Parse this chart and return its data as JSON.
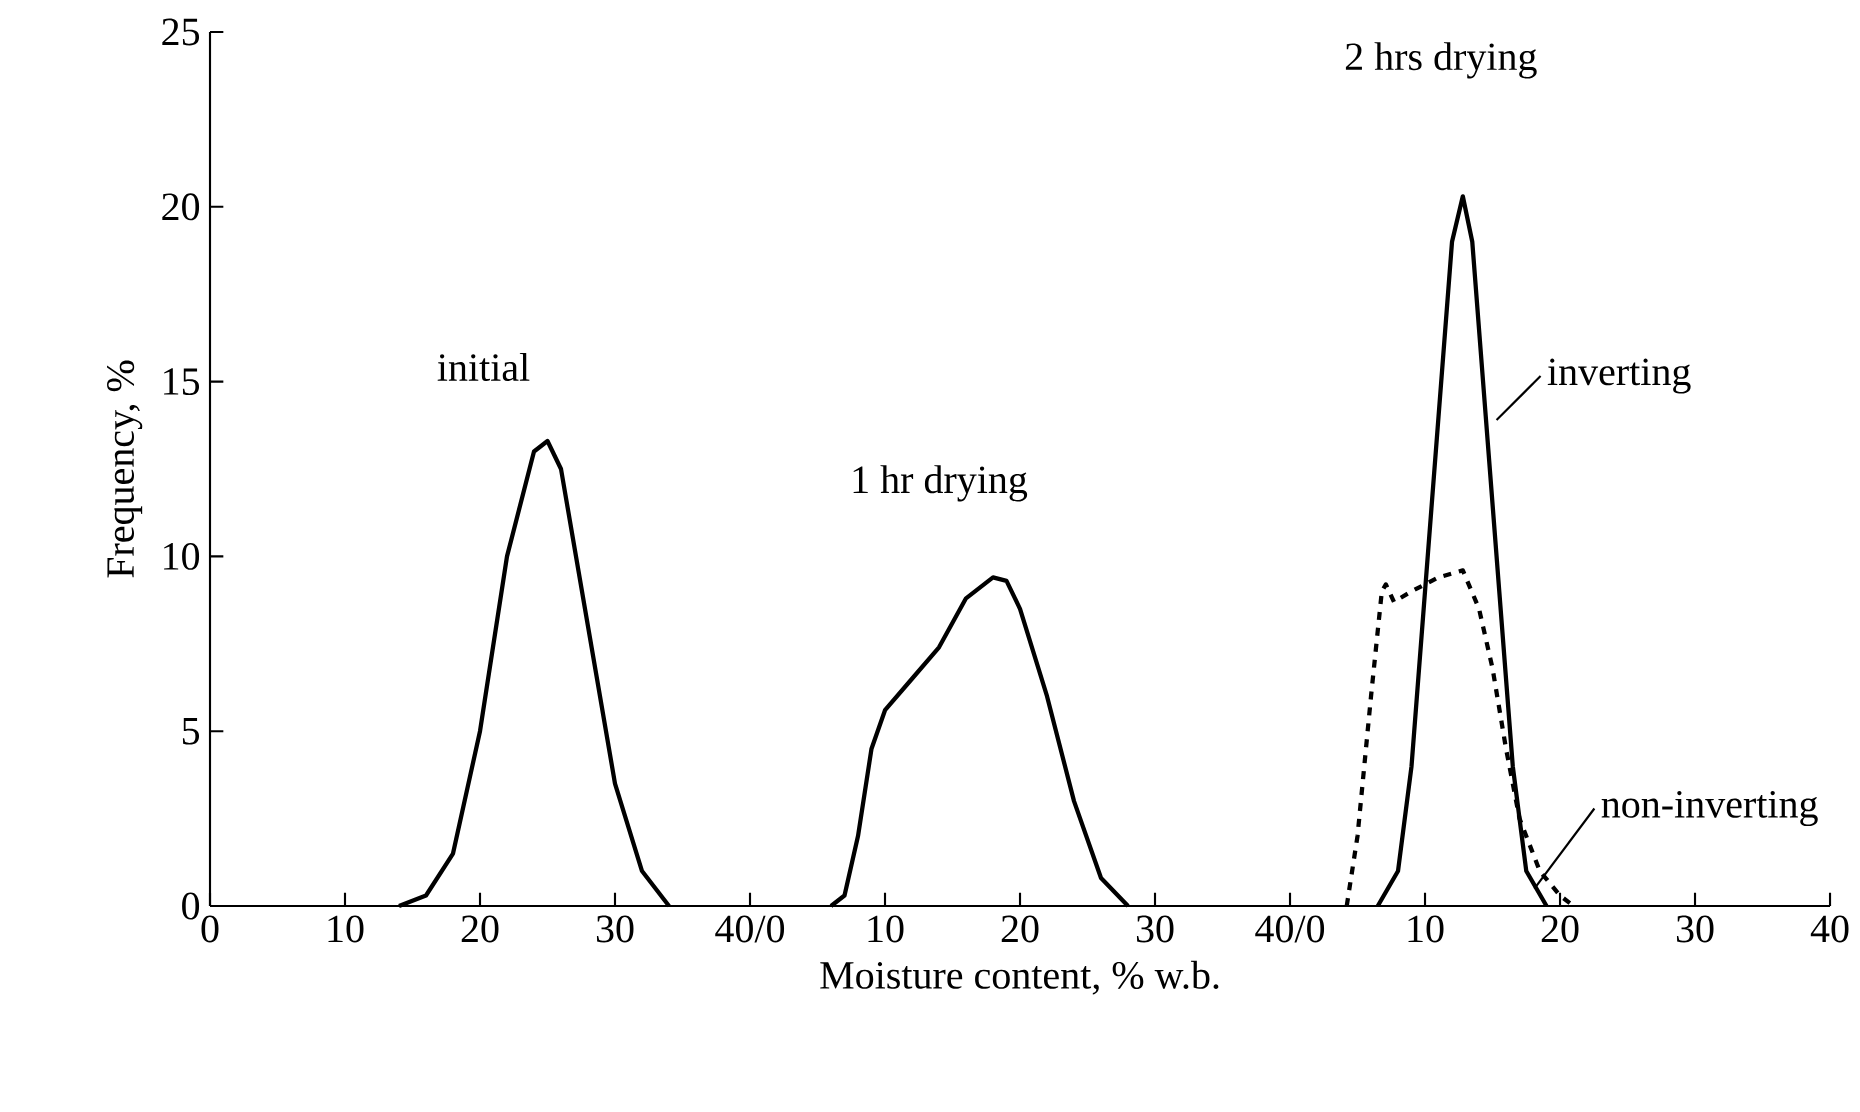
{
  "chart_data": [
    {
      "type": "line",
      "ylabel": "Frequency, %",
      "xlim": [
        0,
        40
      ],
      "ylim": [
        0,
        25
      ],
      "xticks": [
        0,
        10,
        20,
        30,
        {
          "value": 40,
          "label": "40/0"
        }
      ],
      "yticks": [
        0,
        5,
        10,
        15,
        20,
        25
      ],
      "series": [
        {
          "color": "#000000",
          "line_style": "solid",
          "x": [
            14,
            16,
            18,
            20,
            22,
            24,
            25,
            26,
            28,
            30,
            32,
            34
          ],
          "values": [
            0,
            0.3,
            1.5,
            5,
            10,
            13,
            13.3,
            12.5,
            8,
            3.5,
            1,
            0
          ]
        }
      ],
      "annotations": [
        {
          "text": "initial",
          "x": 25,
          "y": 13.3
        }
      ]
    },
    {
      "type": "line",
      "xlabel": "Moisture content, % w.b.",
      "xlim": [
        0,
        40
      ],
      "ylim": [
        0,
        25
      ],
      "tick_labels": "x",
      "xticks": [
        10,
        20,
        30,
        {
          "value": 40,
          "label": "40/0"
        }
      ],
      "yticks": [
        0,
        5,
        10,
        15,
        20,
        25
      ],
      "series": [
        {
          "color": "#000000",
          "line_style": "solid",
          "x": [
            6,
            7,
            8,
            9,
            10,
            12,
            14,
            16,
            18,
            19,
            20,
            22,
            24,
            26,
            28
          ],
          "values": [
            0,
            0.3,
            2,
            4.5,
            5.6,
            6.5,
            7.4,
            8.8,
            9.4,
            9.3,
            8.5,
            6,
            3,
            0.8,
            0
          ]
        }
      ],
      "annotations": [
        {
          "text": "1 hr drying",
          "x": 18,
          "y": 9.4
        }
      ]
    },
    {
      "type": "line",
      "xlim": [
        0,
        40
      ],
      "ylim": [
        0,
        25
      ],
      "tick_labels": "x",
      "xticks": [
        10,
        20,
        30,
        40
      ],
      "yticks": [
        0,
        5,
        10,
        15,
        20,
        25
      ],
      "series": [
        {
          "color": "#000000",
          "line_style": "solid",
          "x": [
            6.5,
            8,
            9,
            10,
            11,
            12,
            12.8,
            13.5,
            14.5,
            15.5,
            16.5,
            17.5,
            19
          ],
          "values": [
            0,
            1,
            4,
            9,
            14,
            19,
            20.3,
            19,
            14,
            9,
            4,
            1,
            0
          ]
        },
        {
          "color": "#000000",
          "line_style": "dashed",
          "x": [
            4.2,
            5,
            6,
            6.8,
            7.1,
            7.7,
            9,
            11,
            12.8,
            14,
            15,
            16,
            17,
            18.5,
            20,
            21
          ],
          "values": [
            0,
            2,
            6,
            9,
            9.2,
            8.7,
            9,
            9.4,
            9.6,
            8.5,
            6.8,
            4.5,
            2.5,
            1,
            0.3,
            0
          ]
        }
      ],
      "annotations": [
        {
          "text": "2 hrs drying",
          "x": 12.8,
          "y": 20.3
        },
        {
          "text": "inverting",
          "x": 15.3,
          "y": 13.9
        },
        {
          "text": "non-inverting",
          "x": 18.1,
          "y": 0.5
        }
      ]
    }
  ]
}
